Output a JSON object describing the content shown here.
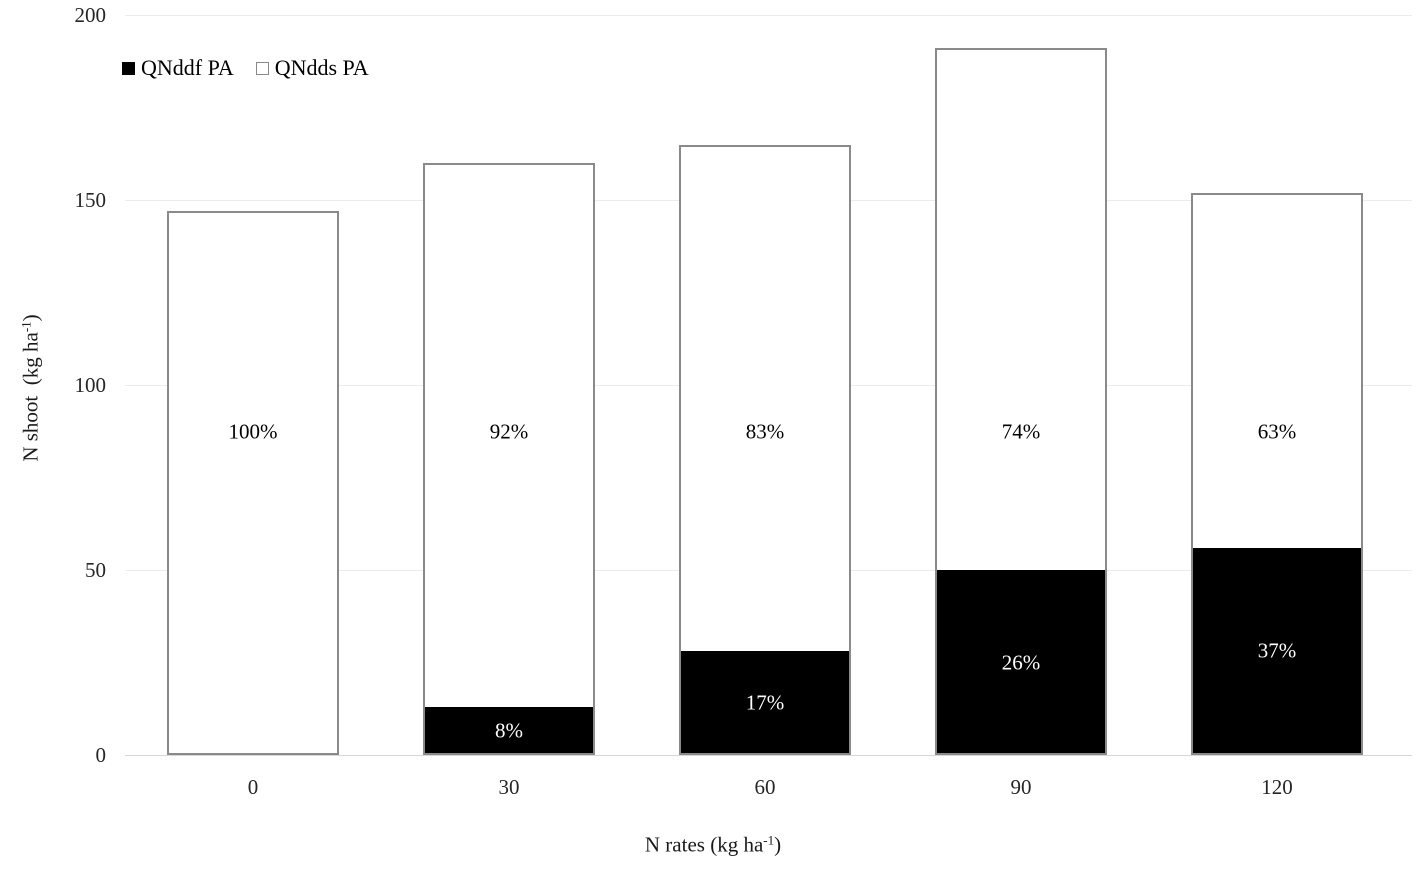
{
  "legend": {
    "items": [
      {
        "label": "QNddf PA",
        "swatch": "black-filled-square"
      },
      {
        "label": "QNdds PA",
        "swatch": "white-open-square"
      }
    ]
  },
  "axes": {
    "y": {
      "title_prefix": "N shoot  (kg ha",
      "title_sup": "-1",
      "title_suffix": ")",
      "ticks": [
        "0",
        "50",
        "100",
        "150",
        "200"
      ]
    },
    "x": {
      "title_prefix": "N rates (kg ha",
      "title_sup": "-1",
      "title_suffix": ")",
      "ticks": [
        "0",
        "30",
        "60",
        "90",
        "120"
      ]
    }
  },
  "colors": {
    "qnddf_fill": "#000000",
    "qndds_fill": "#ffffff",
    "bar_outline": "#8a8a8a",
    "gridline": "#ececec",
    "axis_line": "#d6d6d6",
    "label_on_black": "#ffffff",
    "label_on_white": "#000000"
  },
  "chart_data": {
    "type": "bar",
    "stacked": true,
    "title": "",
    "xlabel": "N rates (kg ha-1)",
    "ylabel": "N shoot (kg ha-1)",
    "ylim": [
      0,
      200
    ],
    "yticks": [
      0,
      50,
      100,
      150,
      200
    ],
    "grid": "horizontal",
    "legend_position": "top-left",
    "categories": [
      "0",
      "30",
      "60",
      "90",
      "120"
    ],
    "series": [
      {
        "name": "QNddf PA",
        "fill": "#000000",
        "values": [
          0,
          13,
          28,
          50,
          56
        ],
        "percent_labels": [
          "",
          "8%",
          "17%",
          "26%",
          "37%"
        ]
      },
      {
        "name": "QNdds PA",
        "fill": "#ffffff",
        "values": [
          147,
          147,
          137,
          141,
          96
        ],
        "percent_labels": [
          "100%",
          "92%",
          "83%",
          "74%",
          "63%"
        ]
      }
    ],
    "stack_totals": [
      147,
      160,
      165,
      191,
      152
    ]
  }
}
